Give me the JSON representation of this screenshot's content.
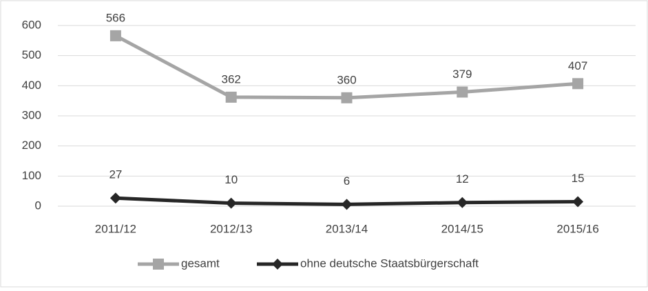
{
  "chart_data": {
    "type": "line",
    "categories": [
      "2011/12",
      "2012/13",
      "2013/14",
      "2014/15",
      "2015/16"
    ],
    "series": [
      {
        "name": "gesamt",
        "color": "#a5a5a5",
        "marker": "square",
        "values": [
          566,
          362,
          360,
          379,
          407
        ]
      },
      {
        "name": "ohne deutsche Staatsbürgerschaft",
        "color": "#262626",
        "marker": "diamond",
        "values": [
          27,
          10,
          6,
          12,
          15
        ]
      }
    ],
    "ylim": [
      0,
      600
    ],
    "yticks": [
      0,
      100,
      200,
      300,
      400,
      500,
      600
    ],
    "grid": true,
    "legend": "bottom"
  }
}
